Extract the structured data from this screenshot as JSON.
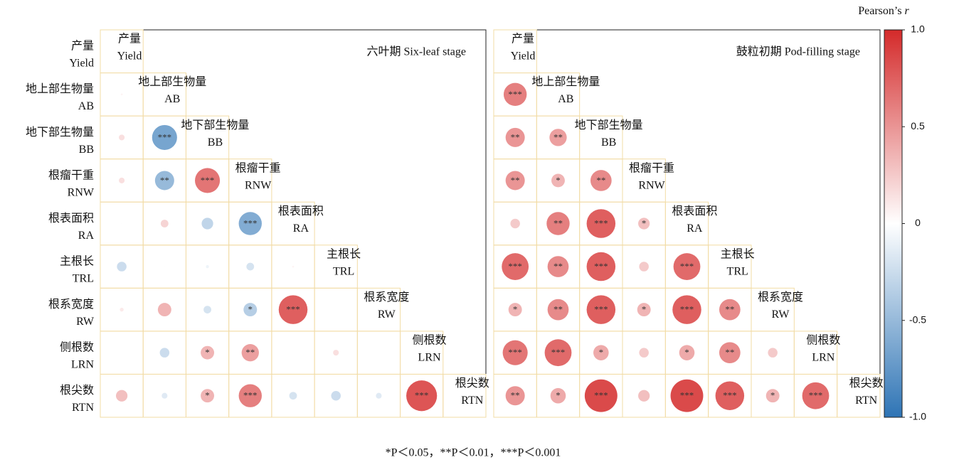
{
  "chart_data": [
    {
      "type": "corrplot",
      "title": "六叶期 Six-leaf stage",
      "row_labels": [
        {
          "zh": "产量",
          "en": "Yield"
        },
        {
          "zh": "地上部生物量",
          "en": "AB"
        },
        {
          "zh": "地下部生物量",
          "en": "BB"
        },
        {
          "zh": "根瘤干重",
          "en": "RNW"
        },
        {
          "zh": "根表面积",
          "en": "RA"
        },
        {
          "zh": "主根长",
          "en": "TRL"
        },
        {
          "zh": "根系宽度",
          "en": "RW"
        },
        {
          "zh": "侧根数",
          "en": "LRN"
        },
        {
          "zh": "根尖数",
          "en": "RTN"
        }
      ],
      "diag_labels": [
        {
          "zh": "产量",
          "en": "Yield"
        },
        {
          "zh": "地上部生物量",
          "en": "AB"
        },
        {
          "zh": "地下部生物量",
          "en": "BB"
        },
        {
          "zh": "根瘤干重",
          "en": "RNW"
        },
        {
          "zh": "根表面积",
          "en": "RA"
        },
        {
          "zh": "主根长",
          "en": "TRL"
        },
        {
          "zh": "根系宽度",
          "en": "RW"
        },
        {
          "zh": "侧根数",
          "en": "LRN"
        },
        {
          "zh": "根尖数",
          "en": "RTN"
        }
      ],
      "values": [
        [],
        [
          0.05
        ],
        [
          0.15,
          -0.65
        ],
        [
          0.15,
          -0.5,
          0.65
        ],
        [
          0.02,
          0.2,
          -0.3,
          -0.6
        ],
        [
          -0.25,
          0.02,
          -0.08,
          -0.2,
          0.05
        ],
        [
          0.1,
          0.35,
          -0.2,
          -0.35,
          0.75,
          0
        ],
        [
          0.01,
          -0.25,
          0.35,
          0.45,
          0.01,
          0.15,
          0.01
        ],
        [
          0.3,
          -0.15,
          0.35,
          0.6,
          -0.2,
          -0.25,
          -0.15,
          0.8
        ]
      ],
      "significance": [
        [],
        [
          null
        ],
        [
          null,
          "***"
        ],
        [
          null,
          "**",
          "***"
        ],
        [
          null,
          null,
          null,
          "***"
        ],
        [
          null,
          null,
          null,
          null,
          null
        ],
        [
          null,
          null,
          null,
          "*",
          "***",
          null
        ],
        [
          null,
          null,
          "*",
          "**",
          null,
          null,
          null
        ],
        [
          null,
          null,
          "*",
          "***",
          null,
          null,
          null,
          "***"
        ]
      ]
    },
    {
      "type": "corrplot",
      "title": "鼓粒初期 Pod-filling stage",
      "diag_labels": [
        {
          "zh": "产量",
          "en": "Yield"
        },
        {
          "zh": "地上部生物量",
          "en": "AB"
        },
        {
          "zh": "地下部生物量",
          "en": "BB"
        },
        {
          "zh": "根瘤干重",
          "en": "RNW"
        },
        {
          "zh": "根表面积",
          "en": "RA"
        },
        {
          "zh": "主根长",
          "en": "TRL"
        },
        {
          "zh": "根系宽度",
          "en": "RW"
        },
        {
          "zh": "侧根数",
          "en": "LRN"
        },
        {
          "zh": "根尖数",
          "en": "RTN"
        }
      ],
      "values": [
        [],
        [
          0.6
        ],
        [
          0.5,
          0.45
        ],
        [
          0.5,
          0.35,
          0.55
        ],
        [
          0.25,
          0.6,
          0.75,
          0.3
        ],
        [
          0.7,
          0.55,
          0.75,
          0.25,
          0.7
        ],
        [
          0.35,
          0.55,
          0.75,
          0.35,
          0.75,
          0.55
        ],
        [
          0.65,
          0.7,
          0.4,
          0.25,
          0.4,
          0.55,
          0.25
        ],
        [
          0.5,
          0.4,
          0.85,
          0.3,
          0.85,
          0.75,
          0.35,
          0.7
        ]
      ],
      "significance": [
        [],
        [
          "***"
        ],
        [
          "**",
          "**"
        ],
        [
          "**",
          "*",
          "**"
        ],
        [
          null,
          "**",
          "***",
          "*"
        ],
        [
          "***",
          "**",
          "***",
          null,
          "***"
        ],
        [
          "*",
          "**",
          "***",
          "*",
          "***",
          "**"
        ],
        [
          "***",
          "***",
          "*",
          null,
          "*",
          "**",
          null
        ],
        [
          "**",
          "*",
          "***",
          null,
          "***",
          "***",
          "*",
          "***"
        ]
      ]
    }
  ],
  "colorbar": {
    "title": "Pearson’s",
    "title_symbol": "r",
    "lim": [
      -1,
      1
    ],
    "colors": [
      "#2e74b5",
      "#ffffff",
      "#d42a2a"
    ],
    "ticks": [
      {
        "value": 1,
        "label": "1.0"
      },
      0.5,
      0,
      -0.5,
      {
        "value": -1,
        "label": "-1.0"
      }
    ]
  },
  "note": "*P＜0.05，**P＜0.01，***P＜0.001"
}
